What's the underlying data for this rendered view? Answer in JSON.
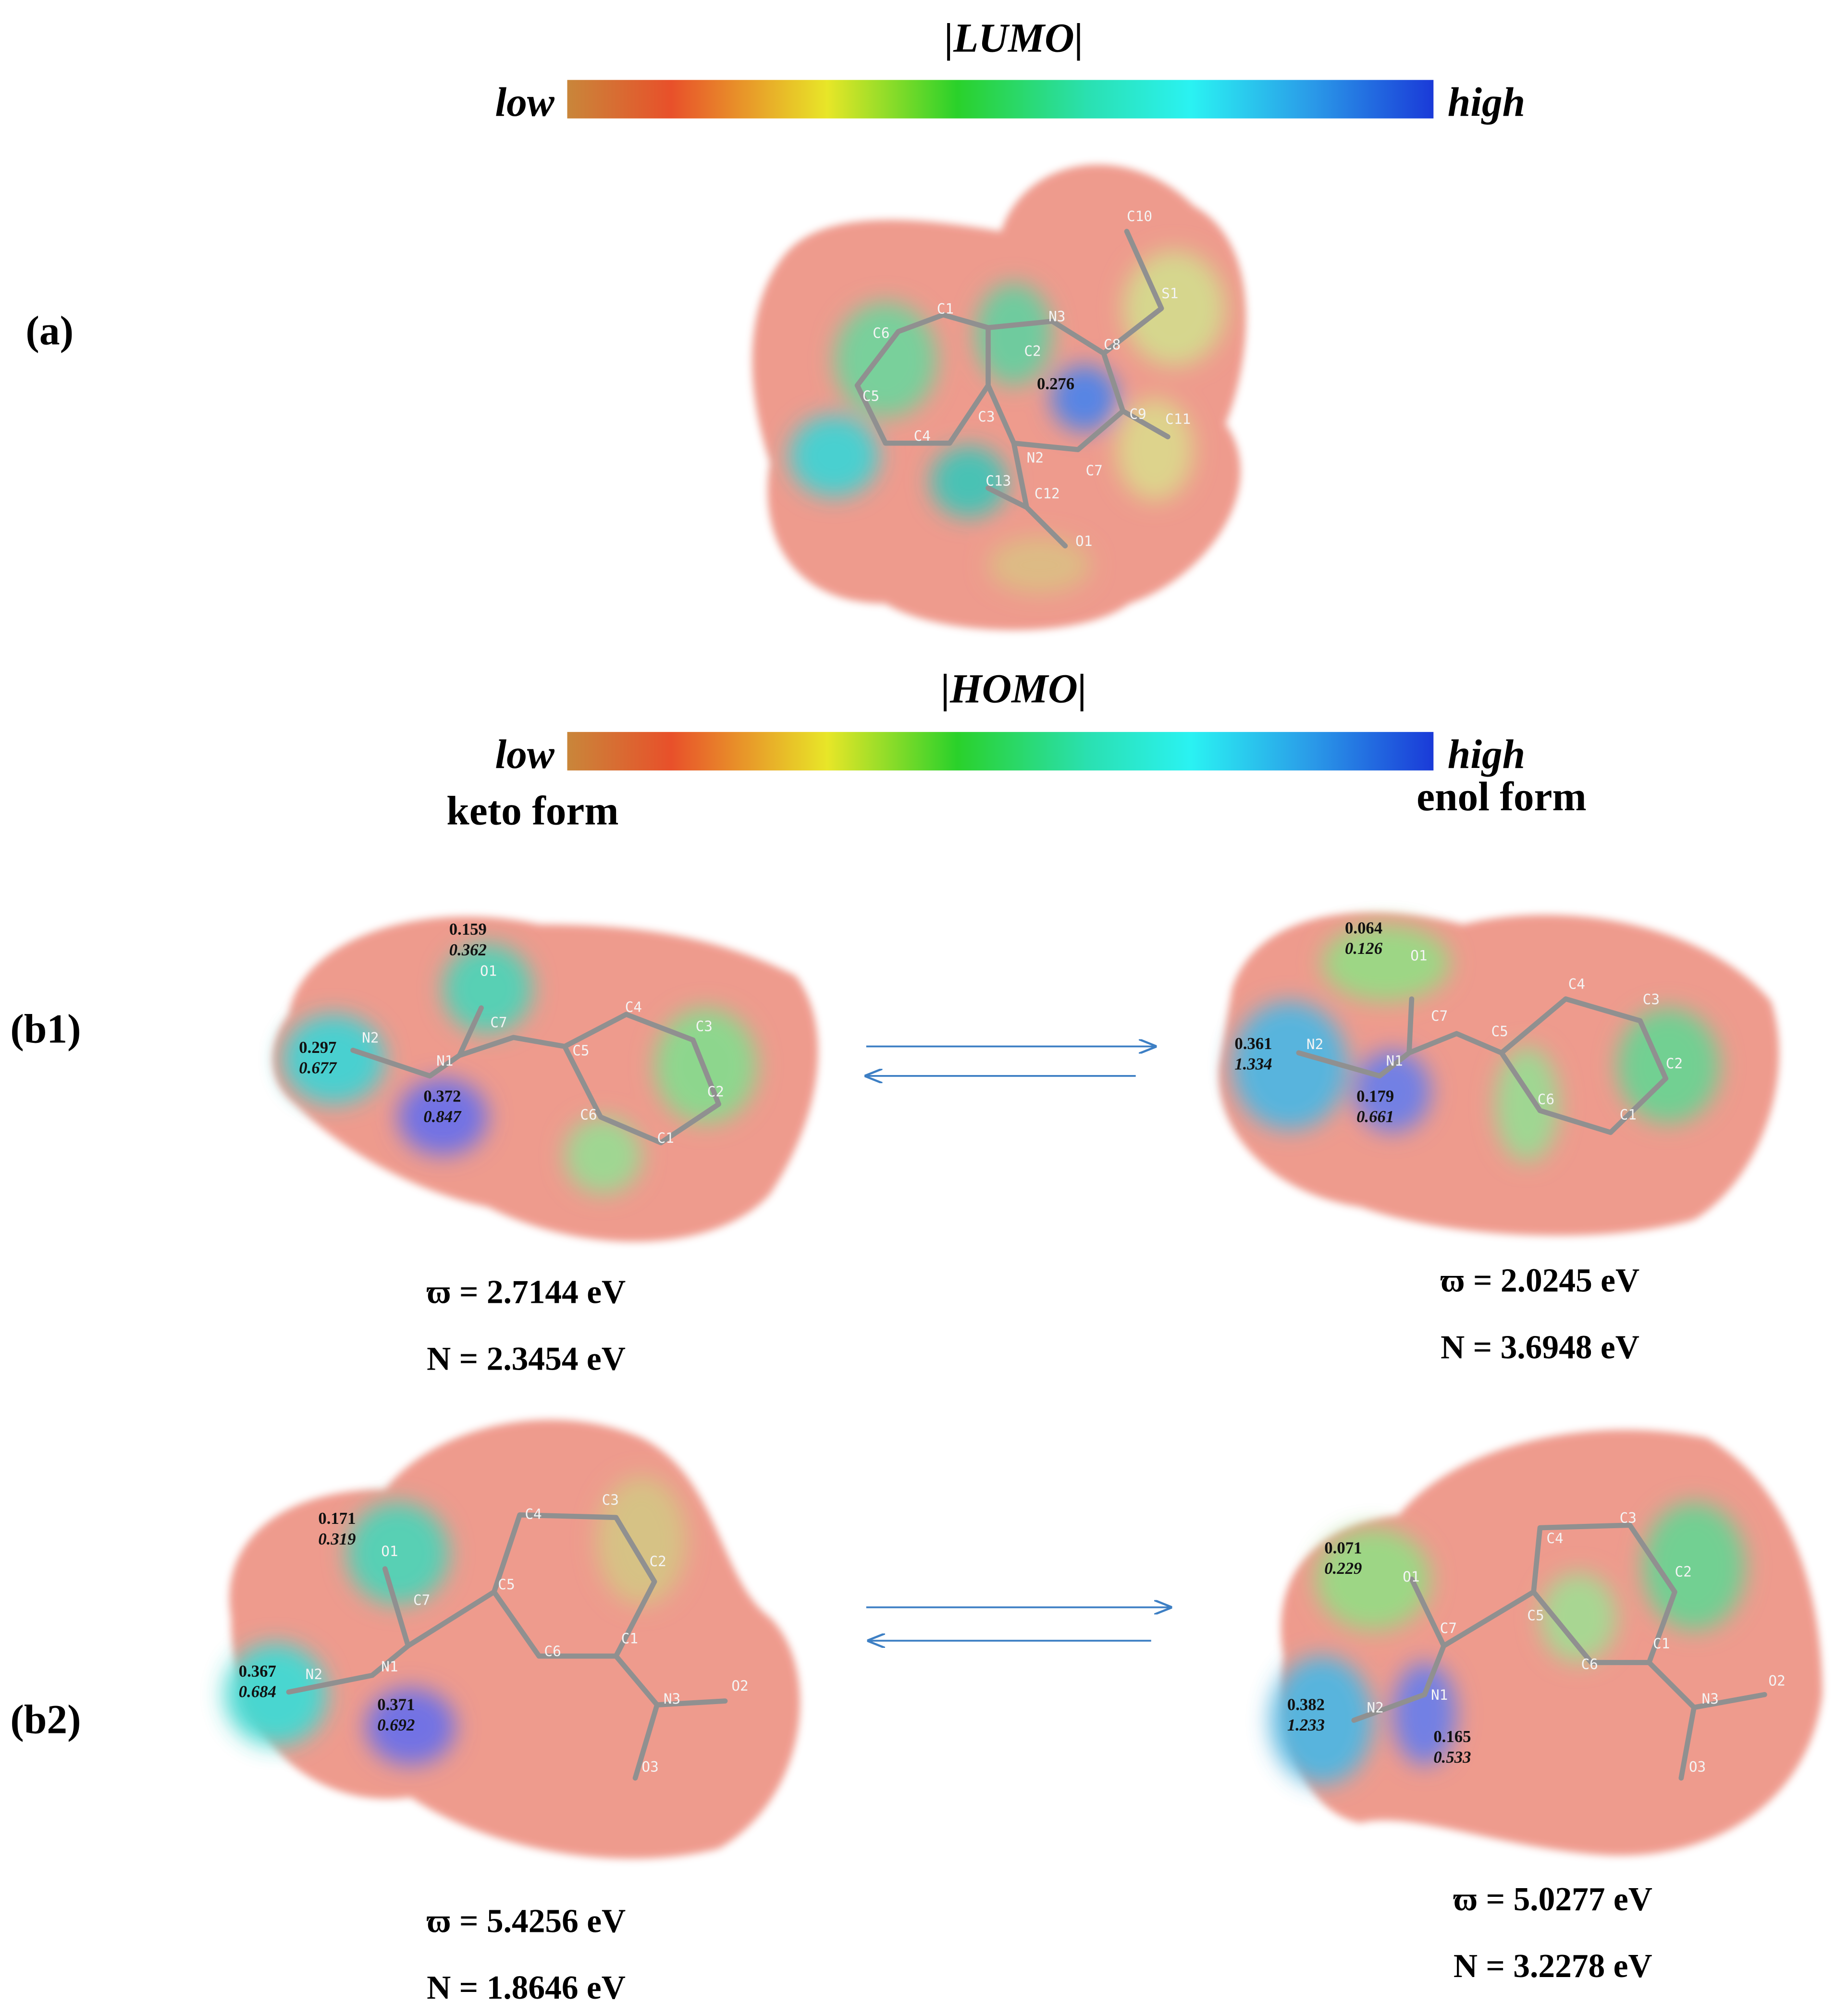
{
  "lumo_scale": {
    "title": "|LUMO|",
    "low": "low",
    "high": "high"
  },
  "homo_scale": {
    "title": "|HOMO|",
    "low": "low",
    "high": "high"
  },
  "panel_a": {
    "label": "(a)",
    "atoms": [
      "C10",
      "S1",
      "C1",
      "C6",
      "N3",
      "C2",
      "C8",
      "C5",
      "C3",
      "C9",
      "C11",
      "C4",
      "N2",
      "C13",
      "C12",
      "C7",
      "O1"
    ],
    "value": "0.276"
  },
  "column_titles": [
    "keto form",
    "enol form"
  ],
  "rows": [
    {
      "label": "(b1)",
      "keto": {
        "atoms": [
          "O1",
          "C7",
          "N2",
          "N1",
          "C4",
          "C3",
          "C5",
          "C6",
          "C2",
          "C1"
        ],
        "charges": [
          [
            "0.159",
            "0.362"
          ],
          [
            "0.297",
            "0.677"
          ],
          [
            "0.372",
            "0.847"
          ]
        ],
        "omega": "ϖ = 2.7144  eV",
        "nucleophilicity": "N = 2.3454  eV"
      },
      "enol": {
        "atoms": [
          "O1",
          "C7",
          "N2",
          "N1",
          "C4",
          "C3",
          "C5",
          "C6",
          "C2",
          "C1"
        ],
        "charges": [
          [
            "0.064",
            "0.126"
          ],
          [
            "0.361",
            "1.334"
          ],
          [
            "0.179",
            "0.661"
          ]
        ],
        "omega": "ϖ = 2.0245  eV",
        "nucleophilicity": "N = 3.6948  eV"
      }
    },
    {
      "label": "(b2)",
      "keto": {
        "atoms": [
          "C4",
          "C3",
          "O1",
          "C7",
          "C5",
          "C2",
          "C6",
          "C1",
          "N2",
          "N1",
          "N3",
          "O2",
          "O3"
        ],
        "charges": [
          [
            "0.171",
            "0.319"
          ],
          [
            "0.367",
            "0.684"
          ],
          [
            "0.371",
            "0.692"
          ]
        ],
        "omega": "ϖ = 5.4256  eV",
        "nucleophilicity": "N = 1.8646  eV"
      },
      "enol": {
        "atoms": [
          "C4",
          "C3",
          "O1",
          "C7",
          "C5",
          "C2",
          "C6",
          "C1",
          "N2",
          "N1",
          "N3",
          "O2",
          "O3"
        ],
        "charges": [
          [
            "0.071",
            "0.229"
          ],
          [
            "0.382",
            "1.233"
          ],
          [
            "0.165",
            "0.533"
          ]
        ],
        "omega": "ϖ = 5.0277  eV",
        "nucleophilicity": "N = 3.2278  eV"
      }
    }
  ]
}
